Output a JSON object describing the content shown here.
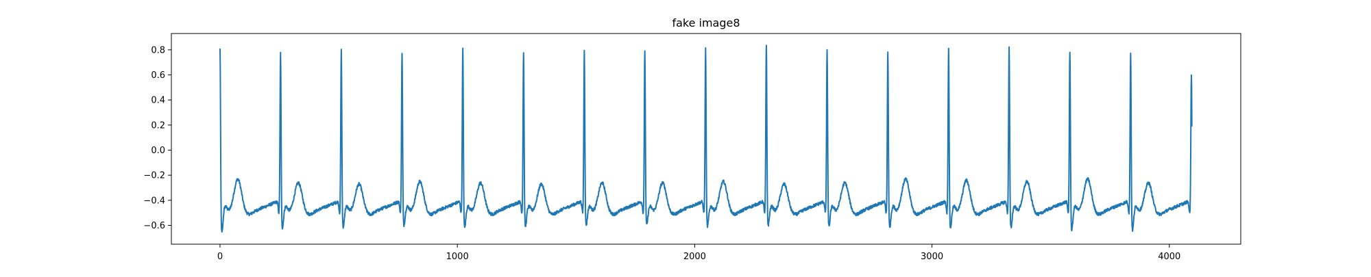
{
  "chart_data": {
    "type": "line",
    "title": "fake image8",
    "xlabel": "",
    "ylabel": "",
    "xlim": [
      -205,
      4301
    ],
    "ylim": [
      -0.75,
      0.93
    ],
    "xticks": [
      0,
      1000,
      2000,
      3000,
      4000
    ],
    "xtick_labels": [
      "0",
      "1000",
      "2000",
      "3000",
      "4000"
    ],
    "yticks": [
      -0.6,
      -0.4,
      -0.2,
      0.0,
      0.2,
      0.4,
      0.6,
      0.8
    ],
    "ytick_labels": [
      "−0.6",
      "−0.4",
      "−0.2",
      "0.0",
      "0.2",
      "0.4",
      "0.6",
      "0.8"
    ],
    "grid": false,
    "legend": "none",
    "series": [
      {
        "color": "#1f77b4",
        "beat_period": 256,
        "r_peak_x": [
          0,
          255,
          511,
          767,
          1023,
          1279,
          1535,
          1790,
          2046,
          2302,
          2558,
          2814,
          3070,
          3325,
          3581,
          3837,
          4093
        ],
        "r_peak_y": [
          0.84,
          0.8,
          0.82,
          0.8,
          0.83,
          0.8,
          0.81,
          0.82,
          0.83,
          0.86,
          0.83,
          0.81,
          0.83,
          0.84,
          0.82,
          0.81,
          0.64
        ],
        "t_wave_peak_y": [
          -0.23,
          -0.26,
          -0.27,
          -0.25,
          -0.26,
          -0.27,
          -0.26,
          -0.26,
          -0.25,
          -0.27,
          -0.26,
          -0.23,
          -0.24,
          -0.25,
          -0.23,
          -0.26
        ],
        "trough_y": [
          -0.67,
          -0.63,
          -0.63,
          -0.61,
          -0.63,
          -0.62,
          -0.61,
          -0.61,
          -0.62,
          -0.61,
          -0.62,
          -0.63,
          -0.63,
          -0.63,
          -0.65,
          -0.65
        ],
        "baseline_y": -0.5,
        "x_end": 4095
      }
    ]
  }
}
